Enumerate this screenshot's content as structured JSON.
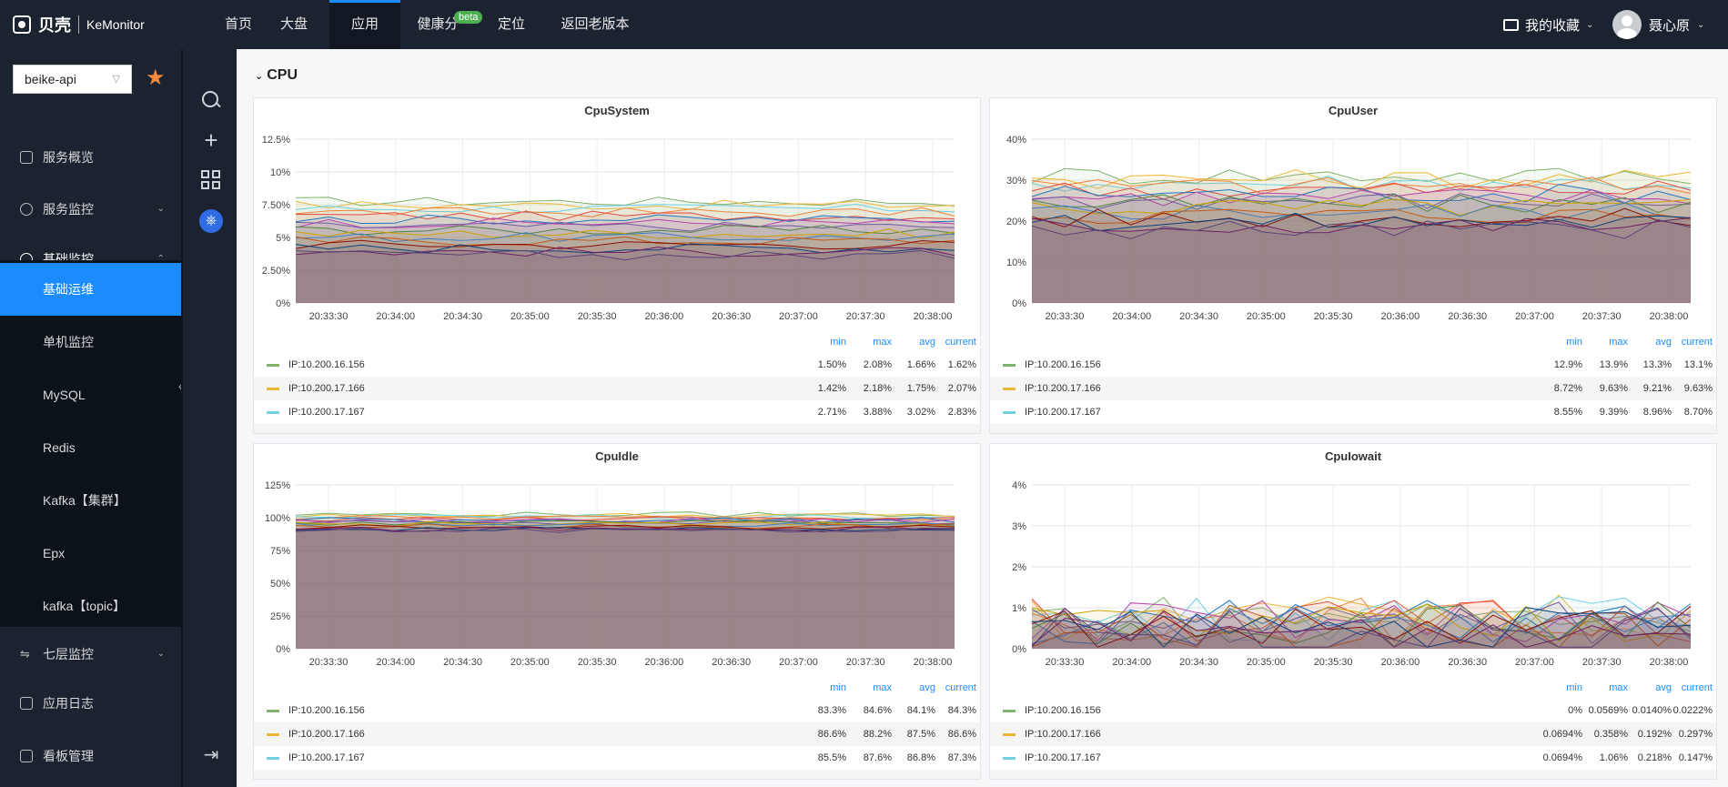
{
  "brand": {
    "name": "贝壳",
    "product": "KeMonitor"
  },
  "nav": {
    "items": [
      "首页",
      "大盘",
      "应用",
      "健康分",
      "定位",
      "返回老版本"
    ],
    "active": "应用",
    "beta_badge": "beta",
    "favorites": "我的收藏",
    "user": "聂心原"
  },
  "sidebar": {
    "service_select": "beike-api",
    "menu": [
      {
        "label": "服务概览",
        "icon": "home-icon"
      },
      {
        "label": "服务监控",
        "icon": "info-icon"
      },
      {
        "label": "基础监控",
        "icon": "dashboard-icon"
      }
    ],
    "submenu": [
      "基础运维",
      "单机监控",
      "MySQL",
      "Redis",
      "Kafka【集群】",
      "Epx",
      "kafka【topic】"
    ],
    "submenu_selected": "基础运维",
    "bottom_menu": [
      {
        "label": "七层监控",
        "icon": "swap-icon"
      },
      {
        "label": "应用日志",
        "icon": "log-icon"
      },
      {
        "label": "看板管理",
        "icon": "board-icon"
      }
    ]
  },
  "section": {
    "title": "CPU"
  },
  "legend_headers": [
    "min",
    "max",
    "avg",
    "current"
  ],
  "colors": {
    "series1": "#7eb26d",
    "series2": "#eab839",
    "series3": "#6ed0e0",
    "accent": "#1a8cff"
  },
  "panels": [
    {
      "title": "CpuSystem",
      "yticks": [
        "12.5%",
        "10%",
        "7.50%",
        "5%",
        "2.50%",
        "0%"
      ],
      "xticks": [
        "20:33:30",
        "20:34:00",
        "20:34:30",
        "20:35:00",
        "20:35:30",
        "20:36:00",
        "20:36:30",
        "20:37:00",
        "20:37:30",
        "20:38:00"
      ],
      "rows": [
        {
          "name": "IP:10.200.16.156",
          "min": "1.50%",
          "max": "2.08%",
          "avg": "1.66%",
          "current": "1.62%"
        },
        {
          "name": "IP:10.200.17.166",
          "min": "1.42%",
          "max": "2.18%",
          "avg": "1.75%",
          "current": "2.07%"
        },
        {
          "name": "IP:10.200.17.167",
          "min": "2.71%",
          "max": "3.88%",
          "avg": "3.02%",
          "current": "2.83%"
        }
      ]
    },
    {
      "title": "CpuUser",
      "yticks": [
        "40%",
        "30%",
        "20%",
        "10%",
        "0%"
      ],
      "xticks": [
        "20:33:30",
        "20:34:00",
        "20:34:30",
        "20:35:00",
        "20:35:30",
        "20:36:00",
        "20:36:30",
        "20:37:00",
        "20:37:30",
        "20:38:00"
      ],
      "rows": [
        {
          "name": "IP:10.200.16.156",
          "min": "12.9%",
          "max": "13.9%",
          "avg": "13.3%",
          "current": "13.1%"
        },
        {
          "name": "IP:10.200.17.166",
          "min": "8.72%",
          "max": "9.63%",
          "avg": "9.21%",
          "current": "9.63%"
        },
        {
          "name": "IP:10.200.17.167",
          "min": "8.55%",
          "max": "9.39%",
          "avg": "8.96%",
          "current": "8.70%"
        }
      ]
    },
    {
      "title": "CpuIdle",
      "yticks": [
        "125%",
        "100%",
        "75%",
        "50%",
        "25%",
        "0%"
      ],
      "xticks": [
        "20:33:30",
        "20:34:00",
        "20:34:30",
        "20:35:00",
        "20:35:30",
        "20:36:00",
        "20:36:30",
        "20:37:00",
        "20:37:30",
        "20:38:00"
      ],
      "rows": [
        {
          "name": "IP:10.200.16.156",
          "min": "83.3%",
          "max": "84.6%",
          "avg": "84.1%",
          "current": "84.3%"
        },
        {
          "name": "IP:10.200.17.166",
          "min": "86.6%",
          "max": "88.2%",
          "avg": "87.5%",
          "current": "86.6%"
        },
        {
          "name": "IP:10.200.17.167",
          "min": "85.5%",
          "max": "87.6%",
          "avg": "86.8%",
          "current": "87.3%"
        }
      ]
    },
    {
      "title": "CpuIowait",
      "yticks": [
        "4%",
        "3%",
        "2%",
        "1%",
        "0%"
      ],
      "xticks": [
        "20:33:30",
        "20:34:00",
        "20:34:30",
        "20:35:00",
        "20:35:30",
        "20:36:00",
        "20:36:30",
        "20:37:00",
        "20:37:30",
        "20:38:00"
      ],
      "rows": [
        {
          "name": "IP:10.200.16.156",
          "min": "0%",
          "max": "0.0569%",
          "avg": "0.0140%",
          "current": "0.0222%"
        },
        {
          "name": "IP:10.200.17.166",
          "min": "0.0694%",
          "max": "0.358%",
          "avg": "0.192%",
          "current": "0.297%"
        },
        {
          "name": "IP:10.200.17.167",
          "min": "0.0694%",
          "max": "1.06%",
          "avg": "0.218%",
          "current": "0.147%"
        }
      ]
    }
  ]
}
